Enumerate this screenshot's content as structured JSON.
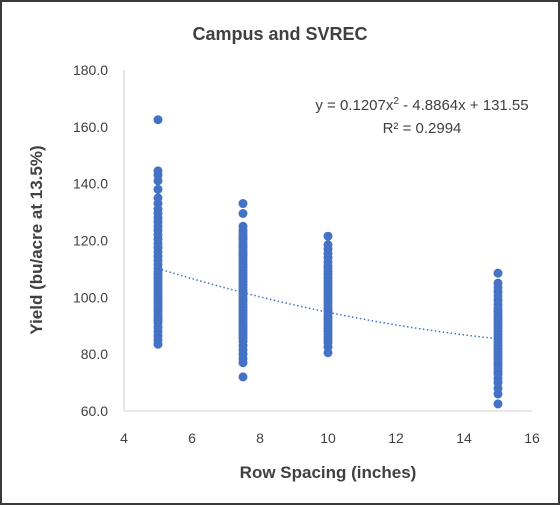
{
  "chart_data": {
    "type": "scatter",
    "title": "Campus and SVREC",
    "xlabel": "Row Spacing (inches)",
    "ylabel": "Yield (bu/acre at 13.5%)",
    "xlim": [
      4,
      16
    ],
    "ylim": [
      60,
      180
    ],
    "xticks": [
      "4",
      "6",
      "8",
      "10",
      "12",
      "14",
      "16"
    ],
    "yticks": [
      "60.0",
      "80.0",
      "100.0",
      "120.0",
      "140.0",
      "160.0",
      "180.0"
    ],
    "grid": false,
    "legend": "none",
    "marker_color": "#4472C4",
    "trendline": {
      "type": "polynomial",
      "order": 2,
      "coefficients": [
        0.1207,
        -4.8864,
        131.55
      ],
      "x_range": [
        5,
        15
      ],
      "style": "dotted",
      "color": "#4472C4",
      "equation_label": "y = 0.1207x",
      "equation_sup": "2",
      "equation_rest": " - 4.8864x + 131.55",
      "r2_label": "R² = 0.2994"
    },
    "series": [
      {
        "x": 5,
        "y": [
          162.5,
          144.5,
          143,
          141,
          138,
          135,
          133,
          131,
          129.5,
          128,
          126.5,
          125,
          123.5,
          122,
          120.5,
          119,
          117.5,
          116,
          114.5,
          113,
          111.5,
          110,
          109,
          108,
          107,
          106,
          105,
          104,
          103,
          102,
          101,
          100,
          99,
          98,
          97,
          96,
          95,
          94,
          93,
          92,
          91,
          89.5,
          88,
          86.5,
          85,
          83.5
        ]
      },
      {
        "x": 7.5,
        "y": [
          133,
          129.5,
          125,
          123.5,
          122.5,
          121.5,
          120.5,
          119.5,
          118.5,
          117.5,
          116.5,
          115.5,
          114.5,
          113.5,
          112.5,
          111.5,
          110.5,
          109.5,
          108.5,
          107.5,
          106.5,
          105.5,
          104.5,
          103.5,
          102.5,
          101.5,
          100.5,
          99.5,
          98.5,
          97.5,
          96.5,
          95.5,
          94.5,
          93.5,
          92.5,
          91.5,
          90.5,
          89.5,
          88.5,
          87.5,
          86.5,
          85.5,
          84.5,
          83,
          81.5,
          80,
          78.5,
          77,
          72
        ]
      },
      {
        "x": 10,
        "y": [
          121.5,
          118.5,
          117,
          115.5,
          114,
          112.5,
          111,
          110,
          109,
          108,
          107,
          106,
          105,
          104,
          103,
          102,
          101,
          100,
          99,
          98,
          97,
          96,
          95,
          94,
          93,
          92,
          91,
          90,
          89,
          88,
          87,
          86,
          85,
          84,
          82.5,
          80.5
        ]
      },
      {
        "x": 15,
        "y": [
          108.5,
          105,
          103.5,
          102,
          100.5,
          99,
          97.5,
          96,
          95,
          94,
          93,
          92,
          91,
          90,
          89,
          88,
          87,
          86,
          85,
          84,
          83,
          82,
          81,
          80,
          79,
          78,
          77,
          76,
          75,
          74,
          73,
          71.5,
          70,
          68,
          66,
          62.5
        ]
      }
    ]
  }
}
